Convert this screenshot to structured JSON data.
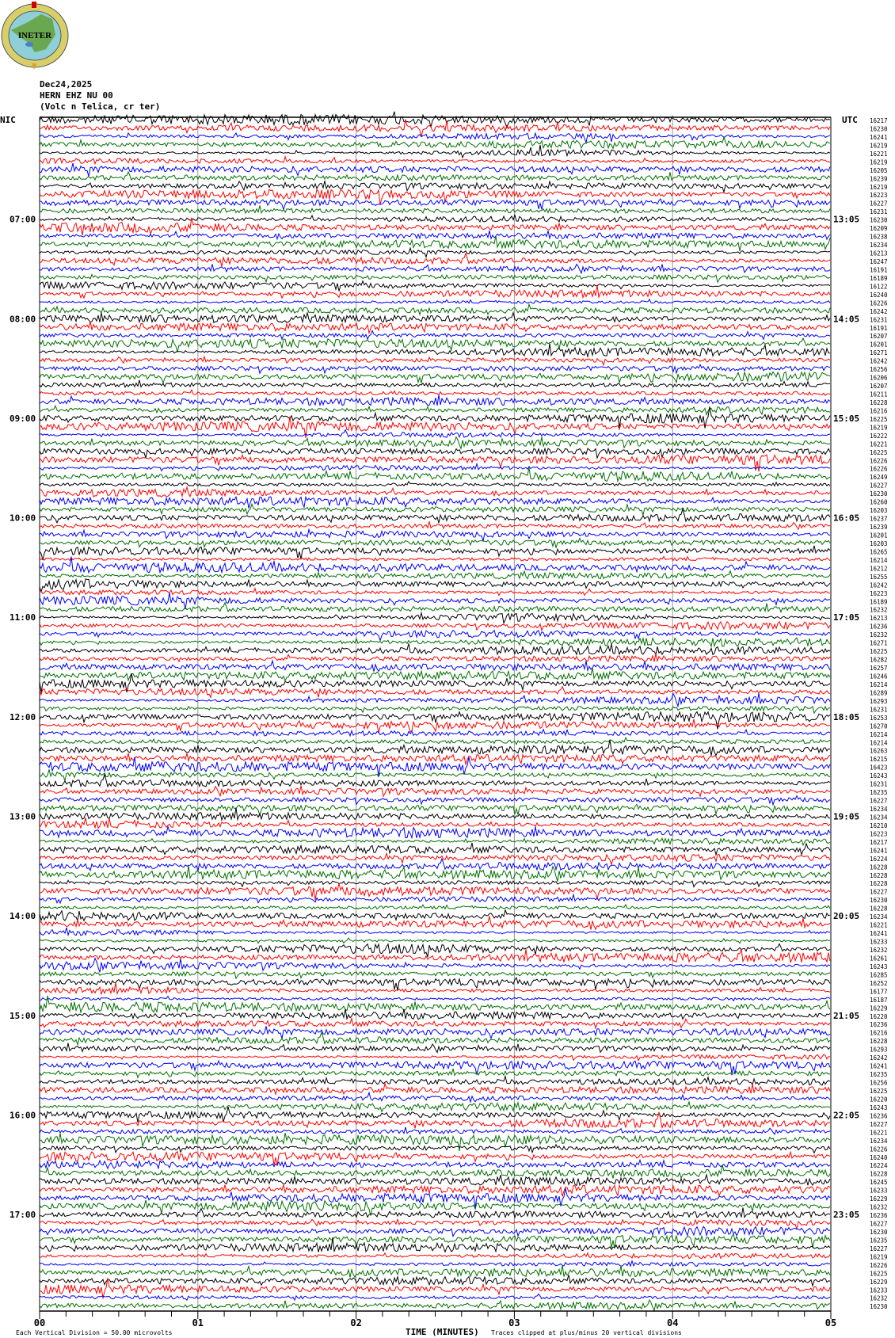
{
  "logo_text": "INETER",
  "header": {
    "date": "Dec24,2025",
    "station": "HERN EHZ NU 00",
    "location": "(Volc n Telica, cr ter)"
  },
  "chart_data": {
    "type": "line",
    "left_timezone": "NIC",
    "right_timezone": "UTC",
    "left_hour_labels": [
      "07:00",
      "08:00",
      "09:00",
      "10:00",
      "11:00",
      "12:00",
      "13:00",
      "14:00",
      "15:00",
      "16:00",
      "17:00"
    ],
    "right_hour_labels": [
      "13:05",
      "14:05",
      "15:05",
      "16:05",
      "17:05",
      "18:05",
      "19:05",
      "20:05",
      "21:05",
      "22:05",
      "23:05"
    ],
    "traces_per_hour": 12,
    "trace_colors": [
      "#000000",
      "#ff0000",
      "#0000ff",
      "#007000"
    ],
    "trace_labels": [
      "16217",
      "16230",
      "16241",
      "16219",
      "16221",
      "16219",
      "16205",
      "16239",
      "16219",
      "16223",
      "16227",
      "16231",
      "16230",
      "16209",
      "16238",
      "16234",
      "16213",
      "16247",
      "16191",
      "16189",
      "16122",
      "16240",
      "16226",
      "16242",
      "16231",
      "16191",
      "16207",
      "16201",
      "16271",
      "16242",
      "16256",
      "16206",
      "16207",
      "16211",
      "16228",
      "16216",
      "16225",
      "16219",
      "16222",
      "16221",
      "16225",
      "16226",
      "16226",
      "16249",
      "16227",
      "16230",
      "16260",
      "16203",
      "16237",
      "16239",
      "16201",
      "16203",
      "16265",
      "16214",
      "16212",
      "16255",
      "16242",
      "16223",
      "16189",
      "16232",
      "16213",
      "16236",
      "16232",
      "16271",
      "16225",
      "16282",
      "16257",
      "16246",
      "16214",
      "16289",
      "16293",
      "16231",
      "16253",
      "16270",
      "16214",
      "16214",
      "16263",
      "16215",
      "16423",
      "16243",
      "16231",
      "16235",
      "16227",
      "16234",
      "16234",
      "16210",
      "16223",
      "16217",
      "16241",
      "16224",
      "16228",
      "16228",
      "16228",
      "16227",
      "16230",
      "16228",
      "16234",
      "16221",
      "16241",
      "16233",
      "16232",
      "16261",
      "16243",
      "16285",
      "16252",
      "16177",
      "16187",
      "16229",
      "16220",
      "16236",
      "16216",
      "16228",
      "16293",
      "16242",
      "16241",
      "16235",
      "16256",
      "16225",
      "16220",
      "16243",
      "16236",
      "16227",
      "16221",
      "16234",
      "16226",
      "16240",
      "16224",
      "16228",
      "16245",
      "16233",
      "16229",
      "16232",
      "16236",
      "16227",
      "16230",
      "16235",
      "16227",
      "16219",
      "16226",
      "16225",
      "16229",
      "16233",
      "16232",
      "16230"
    ],
    "x_ticks": [
      "00",
      "01",
      "02",
      "03",
      "04",
      "05"
    ],
    "xlim": [
      0,
      5
    ],
    "xlabel": "TIME (MINUTES)",
    "scale_note": "Each Vertical Division =   50.00 microvolts",
    "clip_note": "Traces clipped at plus/minus 20 vertical divisions"
  }
}
